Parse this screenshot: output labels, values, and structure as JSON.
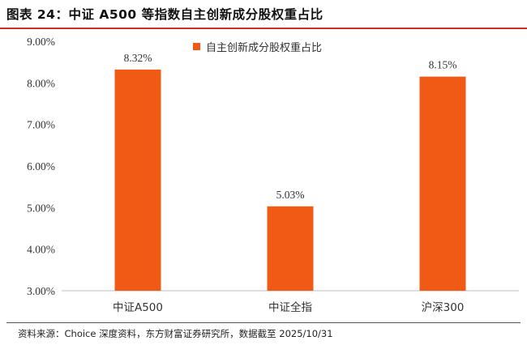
{
  "header": {
    "title": "图表 24：中证 A500 等指数自主创新成分股权重占比"
  },
  "footer": {
    "source": "资料来源：Choice 深度资料，东方财富证券研究所，数据截至 2025/10/31"
  },
  "colors": {
    "bar": "#f05a14",
    "title_rule": "#c9302c"
  },
  "chart_data": {
    "type": "bar",
    "categories": [
      "中证A500",
      "中证全指",
      "沪深300"
    ],
    "series": [
      {
        "name": "自主创新成分股权重占比",
        "values": [
          8.32,
          5.03,
          8.15
        ]
      }
    ],
    "data_labels": [
      "8.32%",
      "5.03%",
      "8.15%"
    ],
    "y_ticks": [
      "3.00%",
      "4.00%",
      "5.00%",
      "6.00%",
      "7.00%",
      "8.00%",
      "9.00%"
    ],
    "ylim": [
      3,
      9
    ],
    "legend_position": "top-center",
    "grid": false
  }
}
